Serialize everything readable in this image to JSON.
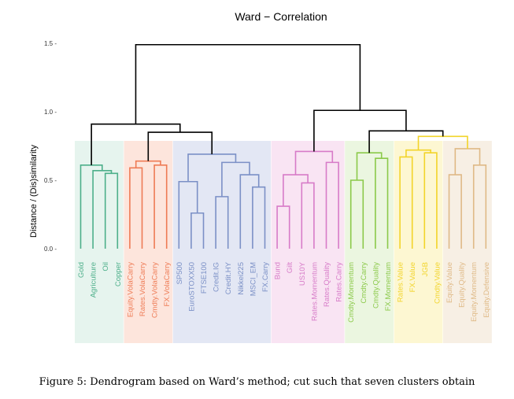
{
  "chart_data": {
    "type": "dendrogram",
    "title": "Ward − Correlation",
    "ylabel": "Distance / (Dis)similarity",
    "xlabel": "",
    "ylim": [
      0,
      1.6
    ],
    "yticks": [
      0.0,
      0.5,
      1.0,
      1.5
    ],
    "ytick_labels": [
      "0.0 -",
      "0.5 -",
      "1.0 -",
      "1.5 -"
    ],
    "clusters": [
      {
        "name": "cluster-1",
        "color": "#4daf8a",
        "bg": "#e6f4ee",
        "leaves": [
          "Gold",
          "Agriculture",
          "Oil",
          "Copper"
        ]
      },
      {
        "name": "cluster-2",
        "color": "#ee7b55",
        "bg": "#fde5dc",
        "leaves": [
          "Equity.VolaCarry",
          "Rates.VolaCarry",
          "Cmdty.VolaCarry",
          "FX.VolaCarry"
        ]
      },
      {
        "name": "cluster-3",
        "color": "#7b90c6",
        "bg": "#e3e7f4",
        "leaves": [
          "SP500",
          "EuroSTOXX50",
          "FTSE100",
          "Credit.IG",
          "Credit.HY",
          "Nikkei225",
          "MSCI_EM",
          "FX.Carry"
        ]
      },
      {
        "name": "cluster-4",
        "color": "#d77bc8",
        "bg": "#f9e4f3",
        "leaves": [
          "Bund",
          "Gilt",
          "US10Y",
          "Rates.Momentum",
          "Rates.Quality",
          "Rates.Carry"
        ]
      },
      {
        "name": "cluster-5",
        "color": "#8bc94a",
        "bg": "#ebf6e0",
        "leaves": [
          "Cmdty.Momentum",
          "Cmdty.Carry",
          "Cmdty.Quality",
          "FX.Momentum"
        ]
      },
      {
        "name": "cluster-6",
        "color": "#f2d42a",
        "bg": "#fdf7d2",
        "leaves": [
          "Rates.Value",
          "FX.Value",
          "JGB",
          "Cmdty.Value"
        ]
      },
      {
        "name": "cluster-7",
        "color": "#dfb986",
        "bg": "#f7efe4",
        "leaves": [
          "Equity.Value",
          "Equity.Quality",
          "Equity.Momentum",
          "Equity.Defensive"
        ]
      }
    ],
    "merges": [
      {
        "left": "Oil",
        "right": "Copper",
        "height": 0.55,
        "color": "#4daf8a"
      },
      {
        "left": "Agriculture",
        "right": "Oil+Copper",
        "height": 0.57,
        "color": "#4daf8a"
      },
      {
        "left": "Gold",
        "right": "Agriculture+Oil+Copper",
        "height": 0.61,
        "color": "#4daf8a"
      },
      {
        "left": "Equity.VolaCarry",
        "right": "Rates.VolaCarry",
        "height": 0.59,
        "color": "#ee7b55"
      },
      {
        "left": "Cmdty.VolaCarry",
        "right": "FX.VolaCarry",
        "height": 0.61,
        "color": "#ee7b55"
      },
      {
        "left": "Equity.VolaCarry+Rates.VolaCarry",
        "right": "Cmdty.VolaCarry+FX.VolaCarry",
        "height": 0.64,
        "color": "#ee7b55"
      },
      {
        "left": "EuroSTOXX50",
        "right": "FTSE100",
        "height": 0.26,
        "color": "#7b90c6"
      },
      {
        "left": "SP500",
        "right": "EuroSTOXX50+FTSE100",
        "height": 0.49,
        "color": "#7b90c6"
      },
      {
        "left": "Credit.IG",
        "right": "Credit.HY",
        "height": 0.38,
        "color": "#7b90c6"
      },
      {
        "left": "MSCI_EM",
        "right": "FX.Carry",
        "height": 0.45,
        "color": "#7b90c6"
      },
      {
        "left": "Nikkei225",
        "right": "MSCI_EM+FX.Carry",
        "height": 0.54,
        "color": "#7b90c6"
      },
      {
        "left": "Credit.IG+Credit.HY",
        "right": "Nikkei225+MSCI_EM+FX.Carry",
        "height": 0.63,
        "color": "#7b90c6"
      },
      {
        "left": "SP500+EuroSTOXX50+FTSE100",
        "right": "Credit cluster",
        "height": 0.69,
        "color": "#7b90c6"
      },
      {
        "left": "Bund",
        "right": "Gilt",
        "height": 0.31,
        "color": "#d77bc8"
      },
      {
        "left": "US10Y",
        "right": "Rates.Momentum",
        "height": 0.48,
        "color": "#d77bc8"
      },
      {
        "left": "Bund+Gilt",
        "right": "US10Y+Rates.Momentum",
        "height": 0.54,
        "color": "#d77bc8"
      },
      {
        "left": "Rates.Quality",
        "right": "Rates.Carry",
        "height": 0.63,
        "color": "#d77bc8"
      },
      {
        "left": "Bund..Rates.Momentum",
        "right": "Rates.Quality+Rates.Carry",
        "height": 0.71,
        "color": "#d77bc8"
      },
      {
        "left": "Cmdty.Momentum",
        "right": "Cmdty.Carry",
        "height": 0.5,
        "color": "#8bc94a"
      },
      {
        "left": "Cmdty.Quality",
        "right": "FX.Momentum",
        "height": 0.66,
        "color": "#8bc94a"
      },
      {
        "left": "Cmdty.Momentum+Cmdty.Carry",
        "right": "Cmdty.Quality+FX.Momentum",
        "height": 0.7,
        "color": "#8bc94a"
      },
      {
        "left": "Rates.Value",
        "right": "FX.Value",
        "height": 0.67,
        "color": "#f2d42a"
      },
      {
        "left": "JGB",
        "right": "Cmdty.Value",
        "height": 0.7,
        "color": "#f2d42a"
      },
      {
        "left": "Rates.Value+FX.Value",
        "right": "JGB+Cmdty.Value",
        "height": 0.72,
        "color": "#f2d42a"
      },
      {
        "left": "Equity.Value",
        "right": "Equity.Quality",
        "height": 0.54,
        "color": "#dfb986"
      },
      {
        "left": "Equity.Momentum",
        "right": "Equity.Defensive",
        "height": 0.61,
        "color": "#dfb986"
      },
      {
        "left": "Equity.Value+Equity.Quality",
        "right": "Equity.Momentum+Equity.Defensive",
        "height": 0.73,
        "color": "#dfb986"
      },
      {
        "left": "cluster-6",
        "right": "cluster-7",
        "height": 0.82,
        "color": "#f2d42a"
      },
      {
        "left": "cluster-5",
        "right": "cluster-6+7",
        "height": 0.86,
        "color": "#000000"
      },
      {
        "left": "cluster-2",
        "right": "cluster-3",
        "height": 0.85,
        "color": "#000000"
      },
      {
        "left": "cluster-1",
        "right": "cluster-2+3",
        "height": 0.91,
        "color": "#000000"
      },
      {
        "left": "cluster-4",
        "right": "cluster-5+6+7",
        "height": 1.01,
        "color": "#000000"
      },
      {
        "left": "cluster-1..3",
        "right": "cluster-4..7",
        "height": 1.49,
        "color": "#000000"
      }
    ]
  },
  "caption": "Figure 5: Dendrogram based on Ward’s method; cut such that seven clusters obtain"
}
